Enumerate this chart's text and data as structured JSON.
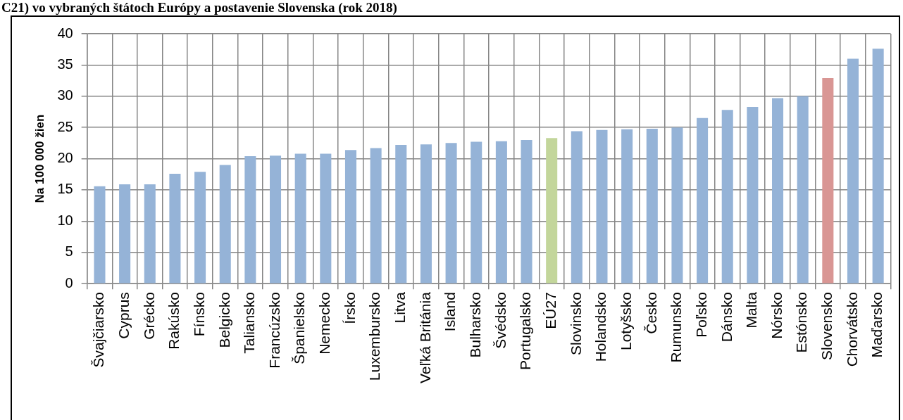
{
  "chart_data": {
    "type": "bar",
    "title": "C21) vo vybraných štátoch Európy a postavenie Slovenska (rok 2018)",
    "ylabel": "Na 100 000 žien",
    "categories": [
      "Švajčiarsko",
      "Cyprus",
      "Grécko",
      "Rakúsko",
      "Fínsko",
      "Belgicko",
      "Taliansko",
      "Francúzsko",
      "Španielsko",
      "Nemecko",
      "Írsko",
      "Luxembursko",
      "Litva",
      "Veľká Británia",
      "Island",
      "Bulharsko",
      "Švédsko",
      "Portugalsko",
      "EÚ27",
      "Slovinsko",
      "Holandsko",
      "Lotyšsko",
      "Česko",
      "Rumunsko",
      "Poľsko",
      "Dánsko",
      "Malta",
      "Nórsko",
      "Estónsko",
      "Slovensko",
      "Chorvátsko",
      "Maďarsko"
    ],
    "values": [
      15.6,
      15.9,
      15.9,
      17.6,
      17.9,
      19.0,
      20.4,
      20.5,
      20.8,
      20.8,
      21.4,
      21.7,
      22.2,
      22.3,
      22.5,
      22.7,
      22.8,
      23.0,
      23.3,
      24.4,
      24.6,
      24.7,
      24.8,
      25.0,
      26.5,
      27.8,
      28.3,
      29.7,
      30.0,
      32.9,
      36.0,
      37.6
    ],
    "colors": [
      "#95b3d7",
      "#95b3d7",
      "#95b3d7",
      "#95b3d7",
      "#95b3d7",
      "#95b3d7",
      "#95b3d7",
      "#95b3d7",
      "#95b3d7",
      "#95b3d7",
      "#95b3d7",
      "#95b3d7",
      "#95b3d7",
      "#95b3d7",
      "#95b3d7",
      "#95b3d7",
      "#95b3d7",
      "#95b3d7",
      "#c3d69b",
      "#95b3d7",
      "#95b3d7",
      "#95b3d7",
      "#95b3d7",
      "#95b3d7",
      "#95b3d7",
      "#95b3d7",
      "#95b3d7",
      "#95b3d7",
      "#95b3d7",
      "#d99694",
      "#95b3d7",
      "#95b3d7"
    ],
    "ylim": [
      0,
      40
    ],
    "yticks": [
      0,
      5,
      10,
      15,
      20,
      25,
      30,
      35,
      40
    ],
    "grid": true
  }
}
